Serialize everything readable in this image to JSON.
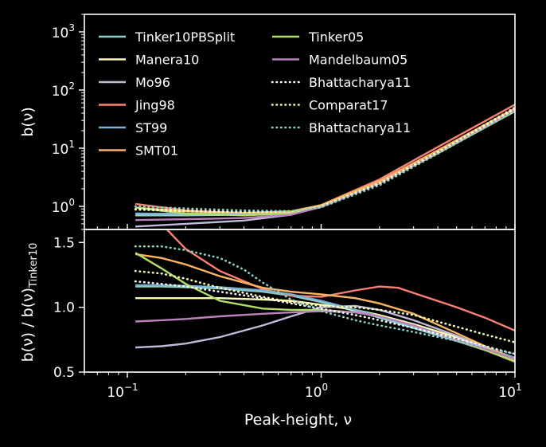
{
  "chart_data": [
    {
      "type": "line",
      "panel": "top",
      "xscale": "log",
      "yscale": "log",
      "xlim": [
        0.06,
        10
      ],
      "ylim": [
        0.4,
        2000
      ],
      "xlabel": "",
      "ylabel": "b(ν)",
      "y_ticks": [
        {
          "value": 1,
          "base": "10",
          "exp": "0"
        },
        {
          "value": 10,
          "base": "10",
          "exp": "1"
        },
        {
          "value": 100,
          "base": "10",
          "exp": "2"
        },
        {
          "value": 1000,
          "base": "10",
          "exp": "3"
        }
      ],
      "grid": false,
      "legend": "upper-left, two columns",
      "series": [
        {
          "name": "Tinker10PBSplit",
          "color": "#8dd3c7",
          "style": "solid",
          "x": [
            0.11,
            0.2,
            0.4,
            0.7,
            1.0,
            2.0,
            4.0,
            10.0
          ],
          "y": [
            0.7,
            0.7,
            0.72,
            0.78,
            1.0,
            2.5,
            8.5,
            46
          ]
        },
        {
          "name": "Manera10",
          "color": "#feffb3",
          "style": "solid",
          "x": [
            0.11,
            0.2,
            0.4,
            0.7,
            1.0,
            2.0,
            4.0,
            10.0
          ],
          "y": [
            0.75,
            0.74,
            0.75,
            0.8,
            1.0,
            2.6,
            8.8,
            48
          ]
        },
        {
          "name": "Mo96",
          "color": "#bfbbd9",
          "style": "solid",
          "x": [
            0.11,
            0.2,
            0.4,
            0.7,
            1.0,
            2.0,
            4.0,
            10.0
          ],
          "y": [
            0.45,
            0.5,
            0.57,
            0.72,
            1.0,
            2.7,
            9.0,
            47
          ]
        },
        {
          "name": "Jing98",
          "color": "#fa8174",
          "style": "solid",
          "x": [
            0.11,
            0.2,
            0.4,
            0.7,
            1.0,
            2.0,
            4.0,
            10.0
          ],
          "y": [
            1.1,
            0.85,
            0.75,
            0.8,
            1.05,
            2.9,
            10.5,
            56
          ]
        },
        {
          "name": "ST99",
          "color": "#81b1d2",
          "style": "solid",
          "x": [
            0.11,
            0.2,
            0.4,
            0.7,
            1.0,
            2.0,
            4.0,
            10.0
          ],
          "y": [
            0.75,
            0.74,
            0.74,
            0.79,
            1.0,
            2.5,
            8.4,
            44
          ]
        },
        {
          "name": "SMT01",
          "color": "#fdb462",
          "style": "solid",
          "x": [
            0.11,
            0.2,
            0.4,
            0.7,
            1.0,
            2.0,
            4.0,
            10.0
          ],
          "y": [
            0.95,
            0.82,
            0.77,
            0.82,
            1.05,
            2.7,
            9.2,
            48
          ]
        },
        {
          "name": "Tinker05",
          "color": "#b3de69",
          "style": "solid",
          "x": [
            0.11,
            0.2,
            0.4,
            0.7,
            1.0,
            2.0,
            4.0,
            10.0
          ],
          "y": [
            0.95,
            0.75,
            0.7,
            0.76,
            1.0,
            2.5,
            8.2,
            43
          ]
        },
        {
          "name": "Mandelbaum05",
          "color": "#bc82bd",
          "style": "solid",
          "x": [
            0.11,
            0.2,
            0.4,
            0.7,
            1.0,
            2.0,
            4.0,
            10.0
          ],
          "y": [
            0.58,
            0.6,
            0.63,
            0.72,
            0.97,
            2.5,
            8.5,
            45
          ]
        },
        {
          "name": "Bhattacharya11",
          "color": "#ffffff",
          "style": "dotted",
          "x": [
            0.11,
            0.2,
            0.4,
            0.7,
            1.0,
            2.0,
            4.0,
            10.0
          ],
          "y": [
            0.9,
            0.85,
            0.8,
            0.82,
            1.0,
            2.4,
            8.3,
            46
          ]
        },
        {
          "name": "Comparat17",
          "color": "#feffb3",
          "style": "dotted",
          "x": [
            0.11,
            0.2,
            0.4,
            0.7,
            1.0,
            2.0,
            4.0,
            10.0
          ],
          "y": [
            0.88,
            0.82,
            0.79,
            0.81,
            1.0,
            2.5,
            8.6,
            50
          ]
        },
        {
          "name": "Bhattacharya11",
          "color": "#8dd3c7",
          "style": "dotted",
          "x": [
            0.11,
            0.2,
            0.4,
            0.7,
            1.0,
            2.0,
            4.0,
            10.0
          ],
          "y": [
            1.0,
            0.92,
            0.85,
            0.83,
            0.96,
            2.3,
            8.0,
            44
          ]
        }
      ]
    },
    {
      "type": "line",
      "panel": "bottom",
      "xscale": "log",
      "yscale": "linear",
      "xlim": [
        0.06,
        10
      ],
      "ylim": [
        0.5,
        1.6
      ],
      "xlabel": "Peak-height, ν",
      "ylabel": "b(ν) / b(ν)",
      "ylabel_subscript": "Tinker10",
      "y_ticks": [
        "0.5",
        "1.0",
        "1.5"
      ],
      "x_ticks": [
        {
          "value": 0.1,
          "base": "10",
          "exp": "−1"
        },
        {
          "value": 1,
          "base": "10",
          "exp": "0"
        },
        {
          "value": 10,
          "base": "10",
          "exp": "1"
        }
      ],
      "grid": false,
      "series": [
        {
          "name": "Tinker10PBSplit",
          "color": "#8dd3c7",
          "style": "solid",
          "x": [
            0.11,
            0.15,
            0.2,
            0.3,
            0.5,
            0.7,
            1.0,
            1.5,
            2.0,
            3.0,
            5.0,
            7.0,
            10.0
          ],
          "y": [
            1.16,
            1.16,
            1.155,
            1.145,
            1.12,
            1.09,
            1.04,
            0.97,
            0.92,
            0.84,
            0.74,
            0.67,
            0.6
          ]
        },
        {
          "name": "Manera10",
          "color": "#feffb3",
          "style": "solid",
          "x": [
            0.11,
            0.15,
            0.2,
            0.3,
            0.5,
            0.7,
            1.0,
            1.5,
            2.0,
            3.0,
            5.0,
            7.0,
            10.0
          ],
          "y": [
            1.07,
            1.07,
            1.07,
            1.07,
            1.06,
            1.05,
            1.02,
            0.98,
            0.94,
            0.87,
            0.77,
            0.69,
            0.61
          ]
        },
        {
          "name": "Mo96",
          "color": "#bfbbd9",
          "style": "solid",
          "x": [
            0.11,
            0.15,
            0.2,
            0.3,
            0.5,
            0.7,
            1.0,
            1.5,
            2.0,
            3.0,
            5.0,
            7.0,
            10.0
          ],
          "y": [
            0.69,
            0.7,
            0.72,
            0.77,
            0.86,
            0.93,
            1.0,
            1.01,
            0.98,
            0.9,
            0.78,
            0.69,
            0.6
          ]
        },
        {
          "name": "Jing98",
          "color": "#fa8174",
          "style": "solid",
          "x": [
            0.16,
            0.2,
            0.3,
            0.5,
            0.7,
            1.0,
            1.5,
            2.0,
            2.5,
            3.0,
            5.0,
            7.0,
            10.0
          ],
          "y": [
            1.6,
            1.45,
            1.28,
            1.14,
            1.09,
            1.08,
            1.13,
            1.16,
            1.15,
            1.11,
            1.0,
            0.92,
            0.82
          ]
        },
        {
          "name": "ST99",
          "color": "#81b1d2",
          "style": "solid",
          "x": [
            0.11,
            0.15,
            0.2,
            0.3,
            0.5,
            0.7,
            1.0,
            1.5,
            2.0,
            3.0,
            5.0,
            7.0,
            10.0
          ],
          "y": [
            1.17,
            1.17,
            1.165,
            1.155,
            1.13,
            1.1,
            1.05,
            0.98,
            0.93,
            0.85,
            0.75,
            0.68,
            0.61
          ]
        },
        {
          "name": "SMT01",
          "color": "#fdb462",
          "style": "solid",
          "x": [
            0.11,
            0.15,
            0.2,
            0.3,
            0.5,
            0.7,
            1.0,
            1.5,
            2.0,
            3.0,
            5.0,
            7.0,
            10.0
          ],
          "y": [
            1.41,
            1.38,
            1.33,
            1.24,
            1.15,
            1.12,
            1.1,
            1.07,
            1.03,
            0.95,
            0.8,
            0.7,
            0.59
          ]
        },
        {
          "name": "Tinker05",
          "color": "#b3de69",
          "style": "solid",
          "x": [
            0.11,
            0.15,
            0.2,
            0.3,
            0.5,
            0.7,
            1.0,
            1.5,
            2.0,
            3.0,
            5.0,
            7.0,
            10.0
          ],
          "y": [
            1.42,
            1.3,
            1.18,
            1.05,
            0.99,
            0.98,
            0.98,
            0.96,
            0.93,
            0.86,
            0.75,
            0.67,
            0.58
          ]
        },
        {
          "name": "Mandelbaum05",
          "color": "#bc82bd",
          "style": "solid",
          "x": [
            0.11,
            0.15,
            0.2,
            0.3,
            0.5,
            0.7,
            1.0,
            1.5,
            2.0,
            3.0,
            5.0,
            7.0,
            10.0
          ],
          "y": [
            0.89,
            0.9,
            0.91,
            0.93,
            0.95,
            0.96,
            0.97,
            0.96,
            0.93,
            0.86,
            0.75,
            0.68,
            0.6
          ]
        },
        {
          "name": "Bhattacharya11",
          "color": "#ffffff",
          "style": "dotted",
          "x": [
            0.11,
            0.15,
            0.2,
            0.3,
            0.5,
            0.7,
            1.0,
            1.5,
            2.0,
            3.0,
            5.0,
            7.0,
            10.0
          ],
          "y": [
            1.2,
            1.18,
            1.16,
            1.12,
            1.07,
            1.03,
            0.99,
            0.94,
            0.9,
            0.84,
            0.76,
            0.7,
            0.64
          ]
        },
        {
          "name": "Comparat17",
          "color": "#feffb3",
          "style": "dotted",
          "x": [
            0.11,
            0.15,
            0.2,
            0.3,
            0.5,
            0.7,
            1.0,
            1.5,
            2.0,
            3.0,
            5.0,
            7.0,
            10.0
          ],
          "y": [
            1.28,
            1.26,
            1.22,
            1.15,
            1.08,
            1.04,
            1.01,
            1.0,
            0.98,
            0.94,
            0.85,
            0.79,
            0.73
          ]
        },
        {
          "name": "Bhattacharya11",
          "color": "#8dd3c7",
          "style": "dotted",
          "x": [
            0.11,
            0.15,
            0.2,
            0.3,
            0.4,
            0.5,
            0.7,
            1.0,
            1.5,
            2.0,
            3.0,
            5.0,
            10.0
          ],
          "y": [
            1.47,
            1.47,
            1.44,
            1.38,
            1.29,
            1.19,
            1.06,
            0.97,
            0.9,
            0.86,
            0.81,
            0.74,
            0.64
          ]
        }
      ]
    }
  ]
}
